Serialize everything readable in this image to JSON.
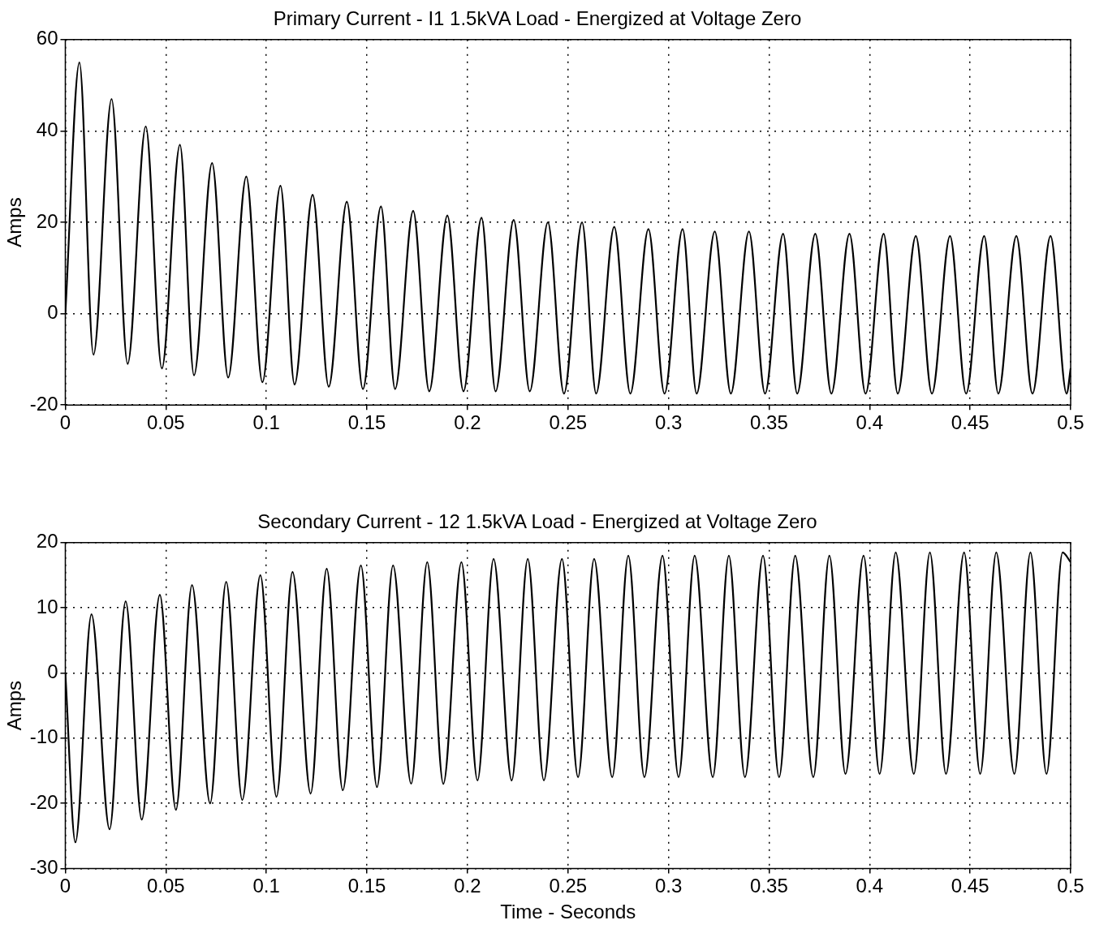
{
  "chart_data": [
    {
      "type": "line",
      "title": "Primary Current - I1 1.5kVA Load - Energized at Voltage Zero",
      "ylabel": "Amps",
      "color": "#000000",
      "x": [
        0,
        0.007,
        0.014,
        0.023,
        0.031,
        0.04,
        0.048,
        0.057,
        0.064,
        0.073,
        0.081,
        0.09,
        0.098,
        0.107,
        0.114,
        0.123,
        0.131,
        0.14,
        0.148,
        0.157,
        0.164,
        0.173,
        0.181,
        0.19,
        0.198,
        0.207,
        0.214,
        0.223,
        0.231,
        0.24,
        0.248,
        0.257,
        0.264,
        0.273,
        0.281,
        0.29,
        0.298,
        0.307,
        0.314,
        0.323,
        0.331,
        0.34,
        0.348,
        0.357,
        0.364,
        0.373,
        0.381,
        0.39,
        0.398,
        0.407,
        0.414,
        0.423,
        0.431,
        0.44,
        0.448,
        0.457,
        0.464,
        0.473,
        0.481,
        0.49,
        0.498,
        0.5
      ],
      "values": [
        0,
        55,
        -9,
        47,
        -11,
        41,
        -12,
        37,
        -13.5,
        33,
        -14,
        30,
        -15,
        28,
        -15.5,
        26,
        -16,
        24.5,
        -16.5,
        23.5,
        -16.5,
        22.5,
        -17,
        21.5,
        -17,
        21,
        -17,
        20.5,
        -17,
        20,
        -17.5,
        20,
        -17.5,
        19,
        -17.5,
        18.5,
        -17.5,
        18.5,
        -17.5,
        18,
        -17.5,
        18,
        -17.5,
        17.5,
        -17.5,
        17.5,
        -17.5,
        17.5,
        -17.5,
        17.5,
        -17.5,
        17,
        -17.5,
        17,
        -17.5,
        17,
        -17.5,
        17,
        -17.5,
        17,
        -17.5,
        -12
      ],
      "xlim": [
        0,
        0.5
      ],
      "xticks": [
        0,
        0.05,
        0.1,
        0.15,
        0.2,
        0.25,
        0.3,
        0.35,
        0.4,
        0.45,
        0.5
      ],
      "ylim": [
        -20,
        60
      ],
      "yticks": [
        -20,
        0,
        20,
        40,
        60
      ],
      "grid": true
    },
    {
      "type": "line",
      "title": "Secondary Current - 12 1.5kVA Load - Energized at Voltage Zero",
      "xlabel": "Time - Seconds",
      "ylabel": "Amps",
      "color": "#000000",
      "x": [
        0,
        0.005,
        0.013,
        0.022,
        0.03,
        0.038,
        0.047,
        0.055,
        0.063,
        0.072,
        0.08,
        0.088,
        0.097,
        0.105,
        0.113,
        0.122,
        0.13,
        0.138,
        0.147,
        0.155,
        0.163,
        0.172,
        0.18,
        0.188,
        0.197,
        0.205,
        0.213,
        0.222,
        0.23,
        0.238,
        0.247,
        0.255,
        0.263,
        0.272,
        0.28,
        0.288,
        0.297,
        0.305,
        0.313,
        0.322,
        0.33,
        0.338,
        0.347,
        0.355,
        0.363,
        0.372,
        0.38,
        0.388,
        0.397,
        0.405,
        0.413,
        0.422,
        0.43,
        0.438,
        0.447,
        0.455,
        0.463,
        0.472,
        0.48,
        0.488,
        0.496,
        0.5
      ],
      "values": [
        0,
        -26,
        9,
        -24,
        11,
        -22.5,
        12,
        -21,
        13.5,
        -20,
        14,
        -19.5,
        15,
        -19,
        15.5,
        -18.5,
        16,
        -18,
        16.5,
        -17.5,
        16.5,
        -17,
        17,
        -17,
        17,
        -16.5,
        17.5,
        -16.5,
        17.5,
        -16.5,
        17.5,
        -16,
        17.5,
        -16,
        18,
        -16,
        18,
        -16,
        18,
        -16,
        18,
        -16,
        18,
        -16,
        18,
        -16,
        18,
        -15.5,
        18,
        -15.5,
        18.5,
        -15.5,
        18.5,
        -15.5,
        18.5,
        -15.5,
        18.5,
        -15.5,
        18.5,
        -15.5,
        18.5,
        17
      ],
      "xlim": [
        0,
        0.5
      ],
      "xticks": [
        0,
        0.05,
        0.1,
        0.15,
        0.2,
        0.25,
        0.3,
        0.35,
        0.4,
        0.45,
        0.5
      ],
      "ylim": [
        -30,
        20
      ],
      "yticks": [
        -30,
        -20,
        -10,
        0,
        10,
        20
      ],
      "grid": true
    }
  ]
}
